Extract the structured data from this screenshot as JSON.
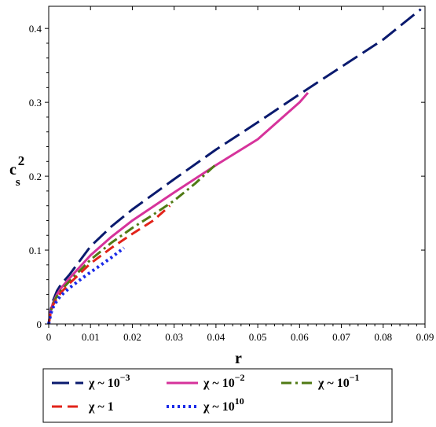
{
  "chart_data": {
    "type": "line",
    "xlabel": "r",
    "ylabel": "c",
    "ylabel_sub": "s",
    "ylabel_sup": "2",
    "xlim": [
      0,
      0.09
    ],
    "ylim": [
      0,
      0.43
    ],
    "xticks": [
      0,
      0.01,
      0.02,
      0.03,
      0.04,
      0.05,
      0.06,
      0.07,
      0.08,
      0.09
    ],
    "xtick_labels": [
      "0",
      "0.01",
      "0.02",
      "0.03",
      "0.04",
      "0.05",
      "0.06",
      "0.07",
      "0.08",
      "0.09"
    ],
    "yticks": [
      0,
      0.1,
      0.2,
      0.3,
      0.4
    ],
    "ytick_labels": [
      "0",
      "0.1",
      "0.2",
      "0.3",
      "0.4"
    ],
    "grid": false,
    "legend_position": "bottom",
    "series": [
      {
        "name": "χ ~ 10^-3",
        "label_base": "χ ~ 10",
        "label_exp": "−3",
        "color": "#0a1a6e",
        "dash": "long-dash",
        "x": [
          0,
          0.0005,
          0.001,
          0.002,
          0.003,
          0.005,
          0.01,
          0.015,
          0.02,
          0.03,
          0.04,
          0.05,
          0.06,
          0.07,
          0.08,
          0.089
        ],
        "y": [
          0,
          0.02,
          0.031,
          0.045,
          0.054,
          0.067,
          0.105,
          0.132,
          0.155,
          0.196,
          0.236,
          0.273,
          0.311,
          0.348,
          0.385,
          0.426
        ]
      },
      {
        "name": "χ ~ 10^-2",
        "label_base": "χ ~ 10",
        "label_exp": "−2",
        "color": "#d6339b",
        "dash": "solid",
        "x": [
          0,
          0.0005,
          0.001,
          0.002,
          0.003,
          0.005,
          0.01,
          0.015,
          0.02,
          0.03,
          0.04,
          0.05,
          0.06,
          0.062
        ],
        "y": [
          0,
          0.018,
          0.028,
          0.04,
          0.049,
          0.062,
          0.093,
          0.118,
          0.14,
          0.178,
          0.215,
          0.25,
          0.3,
          0.313
        ]
      },
      {
        "name": "χ ~ 10^-1",
        "label_base": "χ ~ 10",
        "label_exp": "−1",
        "color": "#4f7a14",
        "dash": "dash-dot",
        "x": [
          0,
          0.0005,
          0.001,
          0.002,
          0.003,
          0.005,
          0.01,
          0.015,
          0.02,
          0.025,
          0.03,
          0.035,
          0.04
        ],
        "y": [
          0,
          0.017,
          0.027,
          0.038,
          0.046,
          0.058,
          0.087,
          0.11,
          0.13,
          0.148,
          0.167,
          0.19,
          0.216
        ]
      },
      {
        "name": "χ ~ 1",
        "label_base": "χ ~ 1",
        "label_exp": "",
        "color": "#e2231a",
        "dash": "dash",
        "x": [
          0,
          0.0005,
          0.001,
          0.002,
          0.003,
          0.005,
          0.01,
          0.015,
          0.02,
          0.025,
          0.029
        ],
        "y": [
          0,
          0.016,
          0.025,
          0.035,
          0.043,
          0.055,
          0.082,
          0.103,
          0.122,
          0.14,
          0.16
        ]
      },
      {
        "name": "χ ~ 10^10",
        "label_base": "χ ~ 10",
        "label_exp": "10",
        "color": "#1a2ae8",
        "dash": "dot",
        "x": [
          0,
          0.0005,
          0.001,
          0.002,
          0.003,
          0.005,
          0.008,
          0.01,
          0.013,
          0.015,
          0.018
        ],
        "y": [
          0,
          0.014,
          0.022,
          0.032,
          0.039,
          0.049,
          0.062,
          0.07,
          0.082,
          0.09,
          0.103
        ]
      }
    ]
  }
}
